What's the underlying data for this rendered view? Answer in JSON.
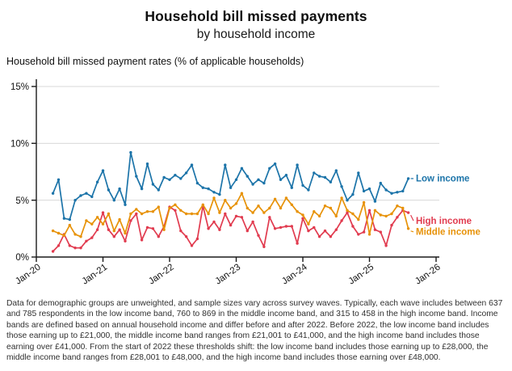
{
  "header": {
    "title": "Household bill missed payments",
    "subtitle": "by household income"
  },
  "chart": {
    "axis_note": "Household bill missed payment rates (% of applicable households)"
  },
  "chart_data": {
    "type": "line",
    "title": "Household bill missed payments by household income",
    "ylabel": "Household bill missed payment rates (% of applicable households)",
    "xlabel": "",
    "grid": true,
    "legend_position": "right-end-of-lines",
    "ylim": [
      0,
      15
    ],
    "yticks": [
      0,
      5,
      10,
      15
    ],
    "ytick_labels": [
      "0%",
      "5%",
      "10%",
      "15%"
    ],
    "x_tick_labels": [
      "Jan-20",
      "Jan-21",
      "Jan-22",
      "Jan-23",
      "Jan-24",
      "Jan-25",
      "Jan-26"
    ],
    "x_total_months": 72,
    "x_start_offset_months": 3,
    "x_months": [
      "Apr-20",
      "May-20",
      "Jun-20",
      "Jul-20",
      "Aug-20",
      "Sep-20",
      "Oct-20",
      "Nov-20",
      "Dec-20",
      "Jan-21",
      "Feb-21",
      "Mar-21",
      "Apr-21",
      "May-21",
      "Jun-21",
      "Jul-21",
      "Aug-21",
      "Sep-21",
      "Oct-21",
      "Nov-21",
      "Dec-21",
      "Jan-22",
      "Feb-22",
      "Mar-22",
      "Apr-22",
      "May-22",
      "Jun-22",
      "Jul-22",
      "Aug-22",
      "Sep-22",
      "Oct-22",
      "Nov-22",
      "Dec-22",
      "Jan-23",
      "Feb-23",
      "Mar-23",
      "Apr-23",
      "May-23",
      "Jun-23",
      "Jul-23",
      "Aug-23",
      "Sep-23",
      "Oct-23",
      "Nov-23",
      "Dec-23",
      "Jan-24",
      "Feb-24",
      "Mar-24",
      "Apr-24",
      "May-24",
      "Jun-24",
      "Jul-24",
      "Aug-24",
      "Sep-24",
      "Oct-24",
      "Nov-24",
      "Dec-24",
      "Jan-25",
      "Feb-25",
      "Mar-25",
      "Apr-25",
      "May-25",
      "Jun-25",
      "Jul-25",
      "Aug-25"
    ],
    "series": [
      {
        "name": "Low income",
        "color": "#1c74a9",
        "values": [
          5.6,
          6.8,
          3.4,
          3.3,
          5.0,
          5.4,
          5.6,
          5.3,
          6.6,
          7.6,
          5.9,
          5.0,
          6.0,
          4.6,
          9.2,
          7.1,
          6.0,
          8.2,
          6.4,
          5.9,
          7.0,
          6.8,
          7.2,
          6.9,
          7.4,
          8.1,
          6.5,
          6.1,
          6.0,
          5.7,
          5.5,
          8.1,
          6.1,
          6.8,
          7.8,
          7.1,
          6.4,
          6.8,
          6.5,
          7.8,
          8.2,
          6.8,
          7.2,
          6.1,
          8.1,
          6.3,
          5.9,
          7.4,
          7.1,
          7.0,
          6.6,
          7.6,
          6.2,
          5.0,
          5.5,
          7.4,
          5.8,
          6.0,
          4.9,
          6.5,
          5.9,
          5.6,
          5.7,
          5.8,
          6.9
        ]
      },
      {
        "name": "High income",
        "color": "#e13b4f",
        "values": [
          0.5,
          1.0,
          2.0,
          1.0,
          0.8,
          0.8,
          1.4,
          1.7,
          2.4,
          3.9,
          2.4,
          1.8,
          2.4,
          1.4,
          3.2,
          3.8,
          1.5,
          2.6,
          2.5,
          1.8,
          2.7,
          4.4,
          4.1,
          2.3,
          1.8,
          1.0,
          1.6,
          4.5,
          2.5,
          3.1,
          2.4,
          3.8,
          2.8,
          3.6,
          3.5,
          2.3,
          3.1,
          1.9,
          0.9,
          3.5,
          2.5,
          2.6,
          2.7,
          2.7,
          1.2,
          3.4,
          2.3,
          2.6,
          1.8,
          2.3,
          1.8,
          2.4,
          3.2,
          3.9,
          2.7,
          2.0,
          2.2,
          4.1,
          2.4,
          2.2,
          1.0,
          2.8,
          3.5,
          4.1,
          3.9
        ]
      },
      {
        "name": "Middle income",
        "color": "#e79208",
        "values": [
          2.3,
          2.1,
          1.9,
          2.8,
          2.0,
          1.8,
          3.2,
          2.9,
          3.5,
          2.9,
          3.8,
          2.3,
          3.3,
          2.1,
          3.8,
          4.2,
          3.8,
          4.0,
          4.0,
          4.4,
          2.4,
          4.3,
          4.6,
          4.1,
          3.8,
          3.8,
          3.8,
          4.6,
          3.8,
          5.2,
          3.9,
          5.0,
          4.3,
          4.7,
          5.6,
          4.3,
          3.9,
          4.5,
          3.9,
          4.3,
          5.1,
          4.3,
          5.2,
          4.6,
          4.0,
          3.7,
          2.9,
          4.0,
          3.6,
          4.5,
          4.3,
          3.6,
          5.2,
          4.1,
          3.8,
          3.3,
          4.8,
          2.0,
          4.1,
          3.7,
          3.6,
          3.8,
          4.5,
          4.3,
          2.5
        ]
      }
    ],
    "colors": {
      "grid": "#d8d8d8",
      "axis": "#1a1a1a",
      "tick_text": "#111111"
    }
  },
  "footnote": "Data for demographic groups are unweighted, and sample sizes vary across survey waves. Typically, each wave includes between 637 and 785 respondents in the low income band, 760 to 869 in the middle income band, and 315 to 458 in the high income band. Income bands are defined based on annual household income and differ before and after 2022. Before 2022, the low income band includes those earning up to £21,000, the middle income band ranges from £21,001 to £41,000, and the high income band includes those earning over £41,000. From the start of 2022 these thresholds shift: the low income band includes those earning up to £28,000, the middle income band ranges from £28,001 to £48,000, and the high income band includes those earning over £48,000."
}
